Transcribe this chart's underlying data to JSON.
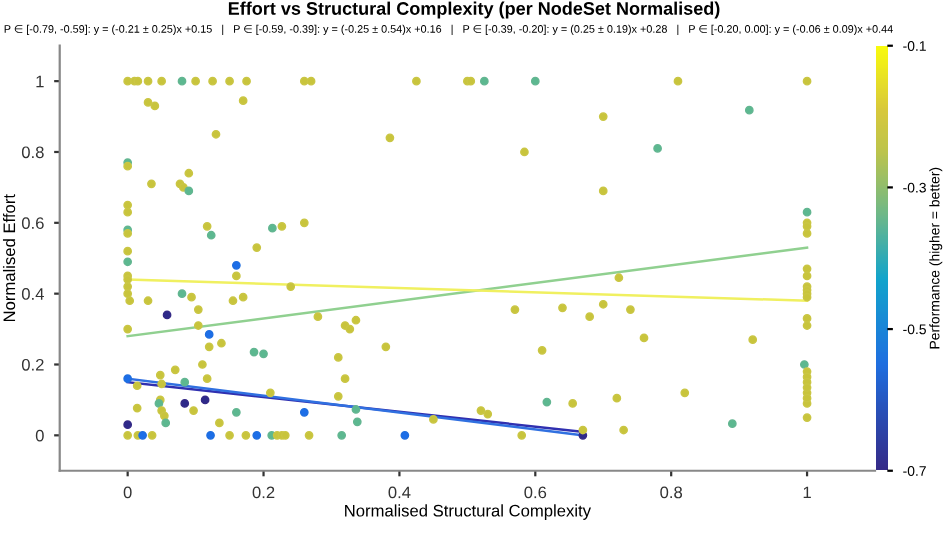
{
  "chart_data": {
    "type": "scatter",
    "title": "Effort vs Structural Complexity (per NodeSet Normalised)",
    "subtitle": "P ∈ [-0.79, -0.59]: y = (-0.21 ± 0.25)x +0.15   |   P ∈ [-0.59, -0.39]: y = (-0.25 ± 0.54)x +0.16   |   P ∈ [-0.39, -0.20]: y = (0.25 ± 0.19)x +0.28   |   P ∈ [-0.20, 0.00]: y = (-0.06 ± 0.09)x +0.44",
    "xlabel": "Normalised Structural Complexity",
    "ylabel": "Normalised Effort",
    "clabel": "Performance (higher = better)",
    "xlim": [
      -0.1,
      1.1
    ],
    "ylim": [
      -0.1,
      1.1
    ],
    "xticks": [
      0,
      0.2,
      0.4,
      0.6,
      0.8,
      1
    ],
    "yticks": [
      0,
      0.2,
      0.4,
      0.6,
      0.8,
      1
    ],
    "clim": [
      -0.7,
      -0.1
    ],
    "cticks": [
      -0.7,
      -0.5,
      -0.3,
      -0.1
    ],
    "grid": false,
    "series": [
      {
        "type": "scatter",
        "marker": "circle",
        "x": [
          0,
          0.01,
          0.015,
          0.03,
          0.05,
          0.08,
          0.1,
          0.125,
          0.15,
          0.175,
          0.26,
          0.27,
          0.425,
          0.5,
          0.505,
          0.525,
          0.6,
          0.81,
          1.0,
          0.03,
          0.04,
          0.17,
          0.13,
          0,
          0,
          0.035,
          0.077,
          0.082,
          0.09,
          0.09,
          0,
          0,
          0,
          0,
          0,
          0,
          0.117,
          0.123,
          0.213,
          0.227,
          0.26,
          0.19,
          0.16,
          0.16,
          0,
          0,
          0,
          0,
          0.003,
          0.03,
          0.08,
          0.094,
          0.104,
          0.104,
          0.155,
          0.17,
          0.24,
          0.28,
          0.32,
          0.327,
          0.336,
          0,
          0.058,
          0.12,
          0.12,
          0.138,
          0.186,
          0.2,
          0.11,
          0.117,
          0.07,
          0.048,
          0.014,
          0.05,
          0.084,
          0.31,
          0.32,
          0.31,
          0,
          0.048,
          0.046,
          0.05,
          0.054,
          0.056,
          0.014,
          0.084,
          0.114,
          0.097,
          0.16,
          0.135,
          0.21,
          0.26,
          0,
          0.336,
          0.338,
          0.38,
          0.386,
          0,
          0.015,
          0.022,
          0.036,
          0.122,
          0.15,
          0.174,
          0.19,
          0.212,
          0.22,
          0.227,
          0.232,
          0.267,
          0.315,
          0.408,
          0.58,
          0.89,
          0.73,
          0.67,
          0.67,
          0.617,
          0.655,
          0.72,
          0.82,
          0.52,
          0.53,
          0.45,
          1,
          1,
          1,
          0.915,
          0.7,
          0.584,
          0.78,
          0.7,
          1,
          1,
          1,
          1,
          1,
          1,
          1,
          1,
          1,
          1,
          1,
          1,
          0.723,
          0.57,
          0.64,
          0.68,
          0.7,
          0.74,
          0.76,
          0.92,
          0.61,
          0.996,
          1,
          1,
          1,
          1,
          1
        ],
        "values": [
          1,
          1,
          1,
          1,
          1,
          1,
          1,
          1,
          1,
          1,
          1,
          1,
          1,
          1,
          1,
          1,
          1,
          1,
          1,
          0.94,
          0.93,
          0.945,
          0.85,
          0.77,
          0.76,
          0.71,
          0.71,
          0.7,
          0.69,
          0.74,
          0.65,
          0.63,
          0.58,
          0.57,
          0.52,
          0.49,
          0.59,
          0.565,
          0.585,
          0.59,
          0.6,
          0.53,
          0.48,
          0.45,
          0.45,
          0.44,
          0.42,
          0.4,
          0.38,
          0.38,
          0.4,
          0.39,
          0.355,
          0.31,
          0.38,
          0.39,
          0.42,
          0.335,
          0.31,
          0.3,
          0.325,
          0.3,
          0.34,
          0.285,
          0.25,
          0.26,
          0.235,
          0.23,
          0.2,
          0.16,
          0.185,
          0.17,
          0.14,
          0.145,
          0.15,
          0.22,
          0.16,
          0.11,
          0.16,
          0.1,
          0.09,
          0.07,
          0.055,
          0.035,
          0.077,
          0.09,
          0.1,
          0.07,
          0.065,
          0.035,
          0.12,
          0.065,
          0.03,
          0.073,
          0.038,
          0.25,
          0.84,
          0,
          0,
          0,
          0,
          0,
          0,
          0,
          0,
          0,
          0,
          0,
          0,
          0,
          0,
          0,
          0,
          0.033,
          0.015,
          0,
          0.015,
          0.094,
          0.09,
          0.105,
          0.12,
          0.07,
          0.06,
          0.045,
          0.12,
          0.09,
          0.05,
          0.918,
          0.9,
          0.8,
          0.81,
          0.69,
          0.63,
          0.6,
          0.59,
          0.57,
          0.47,
          0.45,
          0.42,
          0.41,
          0.4,
          0.39,
          0.33,
          0.31,
          0.445,
          0.355,
          0.36,
          0.335,
          0.37,
          0.355,
          0.275,
          0.27,
          0.24,
          0.2,
          0.18,
          0.165,
          0.15,
          0.135,
          0.105
        ],
        "colors": [
          "#c8c43c",
          "#c8c43c",
          "#c8c43c",
          "#c8c43c",
          "#c8c43c",
          "#5cb890",
          "#c8c43c",
          "#c8c43c",
          "#c8c43c",
          "#c8c43c",
          "#c8c43c",
          "#c8c43c",
          "#c8c43c",
          "#c8c43c",
          "#c8c43c",
          "#5cb890",
          "#5cb890",
          "#c8c43c",
          "#c8c43c",
          "#c8c43c",
          "#c8c43c",
          "#c8c43c",
          "#c8c43c",
          "#5cb890",
          "#c8c43c",
          "#c8c43c",
          "#c8c43c",
          "#c8c43c",
          "#5cb890",
          "#c8c43c",
          "#c8c43c",
          "#c8c43c",
          "#5cb890",
          "#c8c43c",
          "#c8c43c",
          "#5cb890",
          "#c8c43c",
          "#5cb890",
          "#5cb890",
          "#c8c43c",
          "#c8c43c",
          "#c8c43c",
          "#1c6ee8",
          "#c8c43c",
          "#c8c43c",
          "#c8c43c",
          "#c8c43c",
          "#c8c43c",
          "#c8c43c",
          "#c8c43c",
          "#5cb890",
          "#c8c43c",
          "#c8c43c",
          "#c8c43c",
          "#c8c43c",
          "#c8c43c",
          "#c8c43c",
          "#c8c43c",
          "#c8c43c",
          "#c8c43c",
          "#c8c43c",
          "#c8c43c",
          "#2e2a8a",
          "#1c6ee8",
          "#c8c43c",
          "#c8c43c",
          "#5cb890",
          "#5cb890",
          "#c8c43c",
          "#c8c43c",
          "#c8c43c",
          "#c8c43c",
          "#c8c43c",
          "#c8c43c",
          "#5cb890",
          "#c8c43c",
          "#c8c43c",
          "#c8c43c",
          "#1c6ee8",
          "#c8c43c",
          "#5cb890",
          "#c8c43c",
          "#c8c43c",
          "#5cb890",
          "#c8c43c",
          "#2e2a8a",
          "#2e2a8a",
          "#c8c43c",
          "#5cb890",
          "#c8c43c",
          "#c8c43c",
          "#1c6ee8",
          "#2e2a8a",
          "#5cb890",
          "#5cb890",
          "#c8c43c",
          "#c8c43c",
          "#c8c43c",
          "#c8c43c",
          "#1c6ee8",
          "#c8c43c",
          "#1c6ee8",
          "#c8c43c",
          "#c8c43c",
          "#1c6ee8",
          "#5cb890",
          "#c8c43c",
          "#c8c43c",
          "#c8c43c",
          "#c8c43c",
          "#5cb890",
          "#1c6ee8",
          "#c8c43c",
          "#5cb890",
          "#c8c43c",
          "#2e2a8a",
          "#c8c43c",
          "#5cb890",
          "#c8c43c",
          "#c8c43c",
          "#c8c43c",
          "#c8c43c",
          "#c8c43c",
          "#c8c43c",
          "#c8c43c",
          "#c8c43c",
          "#c8c43c",
          "#5cb890",
          "#c8c43c",
          "#c8c43c",
          "#5cb890",
          "#c8c43c",
          "#5cb890",
          "#c8c43c",
          "#c8c43c",
          "#c8c43c",
          "#c8c43c",
          "#c8c43c",
          "#c8c43c",
          "#c8c43c",
          "#c8c43c",
          "#c8c43c",
          "#c8c43c",
          "#c8c43c",
          "#c8c43c",
          "#c8c43c",
          "#c8c43c",
          "#c8c43c",
          "#c8c43c",
          "#c8c43c",
          "#c8c43c",
          "#c8c43c",
          "#c8c43c",
          "#5cb890",
          "#c8c43c",
          "#c8c43c",
          "#c8c43c",
          "#c8c43c",
          "#c8c43c"
        ],
        "cvalues": [
          -0.22,
          -0.22,
          -0.22,
          -0.22,
          -0.22,
          -0.35,
          -0.22,
          -0.22,
          -0.22,
          -0.22,
          -0.22,
          -0.22,
          -0.22,
          -0.22,
          -0.22,
          -0.35,
          -0.35,
          -0.22,
          -0.22,
          -0.22,
          -0.22,
          -0.22,
          -0.22,
          -0.35,
          -0.22,
          -0.22,
          -0.22,
          -0.22,
          -0.35,
          -0.22,
          -0.22,
          -0.22,
          -0.35,
          -0.22,
          -0.22,
          -0.35,
          -0.22,
          -0.35,
          -0.35,
          -0.22,
          -0.22,
          -0.22,
          -0.55,
          -0.22,
          -0.22,
          -0.22,
          -0.22,
          -0.22,
          -0.22,
          -0.22,
          -0.35,
          -0.22,
          -0.22,
          -0.22,
          -0.22,
          -0.22,
          -0.22,
          -0.22,
          -0.22,
          -0.22,
          -0.22,
          -0.22,
          -0.7,
          -0.55,
          -0.22,
          -0.22,
          -0.35,
          -0.35,
          -0.22,
          -0.22,
          -0.22,
          -0.22,
          -0.22,
          -0.22,
          -0.35,
          -0.22,
          -0.22,
          -0.22,
          -0.55,
          -0.22,
          -0.35,
          -0.22,
          -0.22,
          -0.35,
          -0.22,
          -0.7,
          -0.7,
          -0.22,
          -0.35,
          -0.22,
          -0.22,
          -0.55,
          -0.7,
          -0.35,
          -0.35,
          -0.22,
          -0.22,
          -0.22,
          -0.22,
          -0.55,
          -0.22,
          -0.55,
          -0.22,
          -0.22,
          -0.55,
          -0.35,
          -0.22,
          -0.22,
          -0.22,
          -0.22,
          -0.35,
          -0.55,
          -0.22,
          -0.35,
          -0.22,
          -0.7,
          -0.22,
          -0.35,
          -0.22,
          -0.22,
          -0.22,
          -0.22,
          -0.22,
          -0.22,
          -0.22,
          -0.22,
          -0.22,
          -0.35,
          -0.22,
          -0.22,
          -0.35,
          -0.22,
          -0.35,
          -0.22,
          -0.22,
          -0.22,
          -0.22,
          -0.22,
          -0.22,
          -0.22,
          -0.22,
          -0.22,
          -0.22,
          -0.22,
          -0.22,
          -0.22,
          -0.22,
          -0.22,
          -0.22,
          -0.22,
          -0.22,
          -0.22,
          -0.22,
          -0.35,
          -0.22,
          -0.22,
          -0.22,
          -0.22,
          -0.22
        ]
      },
      {
        "type": "line",
        "color": "#3030b0",
        "x": [
          0,
          0.67
        ],
        "values": [
          0.15,
          0.01
        ]
      },
      {
        "type": "line",
        "color": "#3070e0",
        "x": [
          0,
          0.67
        ],
        "values": [
          0.16,
          0.0
        ]
      },
      {
        "type": "line",
        "color": "#90d090",
        "x": [
          0,
          1
        ],
        "values": [
          0.28,
          0.53
        ]
      },
      {
        "type": "line",
        "color": "#f0f060",
        "x": [
          0,
          1
        ],
        "values": [
          0.44,
          0.38
        ]
      }
    ]
  }
}
